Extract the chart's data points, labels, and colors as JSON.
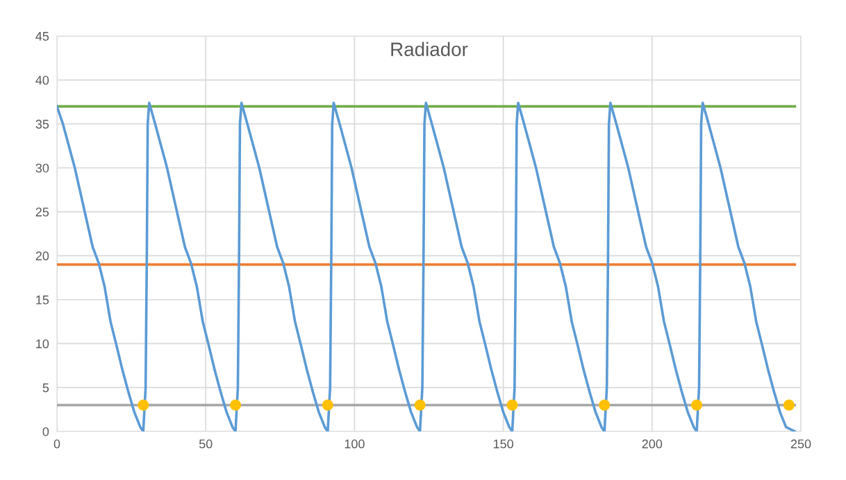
{
  "chart_data": {
    "type": "line",
    "title": "Radiador",
    "xlim": [
      0,
      250
    ],
    "xticks": [
      0,
      50,
      100,
      150,
      200,
      250
    ],
    "ylim": [
      0,
      45
    ],
    "yticks": [
      0,
      5,
      10,
      15,
      20,
      25,
      30,
      35,
      40,
      45
    ],
    "grid": true,
    "marker": "none",
    "line_style": "solid",
    "series": [
      {
        "color": "#70ad47",
        "x": [
          0,
          248
        ],
        "values": [
          37,
          37
        ]
      },
      {
        "color": "#ed7d31",
        "x": [
          0,
          248
        ],
        "values": [
          19,
          19
        ]
      },
      {
        "color": "#a5a5a5",
        "x": [
          0,
          248
        ],
        "values": [
          3,
          3
        ]
      },
      {
        "color": "#5b9bd5",
        "x": [
          0,
          2,
          4,
          6,
          8,
          10,
          12,
          14,
          16,
          18,
          20,
          22,
          24,
          26,
          28,
          29,
          29.8,
          30.2,
          30.5,
          31,
          33,
          35,
          37,
          39,
          41,
          43,
          45,
          47,
          49,
          51,
          53,
          55,
          57,
          59,
          60,
          60.8,
          61.2,
          61.5,
          62,
          64,
          66,
          68,
          70,
          72,
          74,
          76,
          78,
          80,
          82,
          84,
          86,
          88,
          90,
          91,
          91.8,
          92.2,
          92.5,
          93,
          95,
          97,
          99,
          101,
          103,
          105,
          107,
          109,
          111,
          113,
          115,
          117,
          119,
          121,
          122,
          122.8,
          123.2,
          123.5,
          124,
          126,
          128,
          130,
          132,
          134,
          136,
          138,
          140,
          142,
          144,
          146,
          148,
          150,
          152,
          153,
          153.8,
          154.2,
          154.5,
          155,
          157,
          159,
          161,
          163,
          165,
          167,
          169,
          171,
          173,
          175,
          177,
          179,
          181,
          183,
          184,
          184.8,
          185.2,
          185.5,
          186,
          188,
          190,
          192,
          194,
          196,
          198,
          200,
          202,
          204,
          206,
          208,
          210,
          212,
          214,
          215,
          215.8,
          216.2,
          216.5,
          217,
          219,
          221,
          223,
          225,
          227,
          229,
          231,
          233,
          235,
          237,
          239,
          241,
          243,
          245,
          248
        ],
        "values": [
          37,
          35,
          32.5,
          30,
          27,
          24,
          21,
          19.2,
          16.5,
          12.5,
          9.8,
          7,
          4.5,
          2.2,
          0.5,
          0,
          5,
          20,
          35,
          37.4,
          35,
          32.5,
          30,
          27,
          24,
          21,
          19.2,
          16.5,
          12.5,
          9.8,
          7,
          4.5,
          2.2,
          0.5,
          0,
          5,
          20,
          35,
          37.4,
          35,
          32.5,
          30,
          27,
          24,
          21,
          19.2,
          16.5,
          12.5,
          9.8,
          7,
          4.5,
          2.2,
          0.5,
          0,
          5,
          20,
          35,
          37.4,
          35,
          32.5,
          30,
          27,
          24,
          21,
          19.2,
          16.5,
          12.5,
          9.8,
          7,
          4.5,
          2.2,
          0.5,
          0,
          5,
          20,
          35,
          37.4,
          35,
          32.5,
          30,
          27,
          24,
          21,
          19.2,
          16.5,
          12.5,
          9.8,
          7,
          4.5,
          2.2,
          0.5,
          0,
          5,
          20,
          35,
          37.4,
          35,
          32.5,
          30,
          27,
          24,
          21,
          19.2,
          16.5,
          12.5,
          9.8,
          7,
          4.5,
          2.2,
          0.5,
          0,
          5,
          20,
          35,
          37.4,
          35,
          32.5,
          30,
          27,
          24,
          21,
          19.2,
          16.5,
          12.5,
          9.8,
          7,
          4.5,
          2.2,
          0.5,
          0,
          5,
          20,
          35,
          37.4,
          35,
          32.5,
          30,
          27,
          24,
          21,
          19.2,
          16.5,
          12.5,
          9.8,
          7,
          4.5,
          2.2,
          0.5,
          0
        ]
      },
      {
        "type": "scatter",
        "marker": "circle",
        "color": "#ffc000",
        "x": [
          29,
          60,
          91,
          122,
          153,
          184,
          215,
          246
        ],
        "values": [
          3,
          3,
          3,
          3,
          3,
          3,
          3,
          3
        ]
      }
    ]
  }
}
